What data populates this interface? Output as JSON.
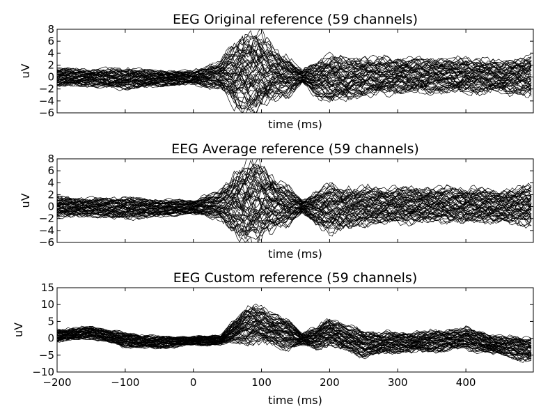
{
  "chart_data": [
    {
      "type": "line",
      "title": "EEG Original reference (59 channels)",
      "xlabel": "time (ms)",
      "ylabel": "uV",
      "xlim": [
        -200,
        499
      ],
      "ylim": [
        -6,
        8
      ],
      "yticks": [
        "−6",
        "−4",
        "−2",
        "0",
        "2",
        "4",
        "6",
        "8"
      ],
      "ytick_values": [
        -6,
        -4,
        -2,
        0,
        2,
        4,
        6,
        8
      ],
      "xticks_shown": false,
      "grid": false,
      "legend": "none",
      "n_series": 59,
      "line_color": "#000000",
      "envelope": {
        "x": [
          -200,
          -150,
          -100,
          -50,
          0,
          40,
          60,
          80,
          90,
          100,
          120,
          140,
          160,
          180,
          200,
          220,
          250,
          300,
          350,
          400,
          450,
          499
        ],
        "upper": [
          1.5,
          1.2,
          1.4,
          1.0,
          1.0,
          2.5,
          5.5,
          7.2,
          7.3,
          6.8,
          4.5,
          3.0,
          1.0,
          2.5,
          3.5,
          3.0,
          3.0,
          3.0,
          3.0,
          3.0,
          2.5,
          3.5
        ],
        "lower": [
          -1.5,
          -1.5,
          -2.0,
          -1.5,
          -1.2,
          -2.0,
          -4.5,
          -5.8,
          -5.6,
          -5.0,
          -3.5,
          -3.0,
          -1.0,
          -3.0,
          -4.0,
          -3.8,
          -3.0,
          -2.5,
          -2.5,
          -2.5,
          -2.5,
          -3.0
        ]
      }
    },
    {
      "type": "line",
      "title": "EEG Average reference (59 channels)",
      "xlabel": "time (ms)",
      "ylabel": "uV",
      "xlim": [
        -200,
        499
      ],
      "ylim": [
        -6,
        8
      ],
      "yticks": [
        "−6",
        "−4",
        "−2",
        "0",
        "2",
        "4",
        "6",
        "8"
      ],
      "ytick_values": [
        -6,
        -4,
        -2,
        0,
        2,
        4,
        6,
        8
      ],
      "xticks_shown": false,
      "grid": false,
      "legend": "none",
      "n_series": 59,
      "line_color": "#000000",
      "envelope": {
        "x": [
          -200,
          -150,
          -100,
          -50,
          0,
          40,
          60,
          80,
          90,
          100,
          120,
          140,
          160,
          180,
          200,
          220,
          250,
          300,
          350,
          400,
          450,
          499
        ],
        "upper": [
          1.6,
          1.3,
          1.5,
          1.1,
          1.0,
          2.5,
          5.5,
          7.2,
          7.3,
          6.8,
          4.5,
          3.0,
          1.0,
          2.5,
          3.5,
          3.0,
          3.0,
          3.0,
          3.0,
          3.0,
          2.5,
          3.5
        ],
        "lower": [
          -1.6,
          -1.6,
          -2.0,
          -1.6,
          -1.2,
          -2.0,
          -4.5,
          -5.8,
          -5.6,
          -5.0,
          -3.5,
          -3.0,
          -1.0,
          -3.0,
          -4.0,
          -3.8,
          -3.0,
          -2.5,
          -2.5,
          -2.5,
          -2.5,
          -3.0
        ]
      }
    },
    {
      "type": "line",
      "title": "EEG Custom reference (59 channels)",
      "xlabel": "time (ms)",
      "ylabel": "uV",
      "xlim": [
        -200,
        499
      ],
      "ylim": [
        -10,
        15
      ],
      "yticks": [
        "−10",
        "−5",
        "0",
        "5",
        "10",
        "15"
      ],
      "ytick_values": [
        -10,
        -5,
        0,
        5,
        10,
        15
      ],
      "xticks": [
        "−200",
        "−100",
        "0",
        "100",
        "200",
        "300",
        "400"
      ],
      "xtick_values": [
        -200,
        -100,
        0,
        100,
        200,
        300,
        400
      ],
      "xticks_shown": true,
      "grid": false,
      "legend": "none",
      "n_series": 59,
      "line_color": "#000000",
      "envelope": {
        "x": [
          -200,
          -150,
          -100,
          -50,
          0,
          40,
          60,
          80,
          90,
          100,
          120,
          140,
          160,
          180,
          200,
          220,
          250,
          300,
          350,
          400,
          450,
          499
        ],
        "upper": [
          2.5,
          3.5,
          1.5,
          0.5,
          0.5,
          1.0,
          5.0,
          9.0,
          10.0,
          9.0,
          6.5,
          5.5,
          1.5,
          3.0,
          6.0,
          4.0,
          2.0,
          1.5,
          2.0,
          3.0,
          0.5,
          0.0
        ],
        "lower": [
          -1.0,
          0.0,
          -2.5,
          -3.0,
          -2.0,
          -2.0,
          -1.0,
          -1.5,
          -1.0,
          -1.5,
          -2.0,
          -3.0,
          -2.0,
          -3.0,
          -2.0,
          -3.5,
          -5.5,
          -4.0,
          -4.0,
          -3.0,
          -5.0,
          -7.0
        ]
      }
    }
  ]
}
